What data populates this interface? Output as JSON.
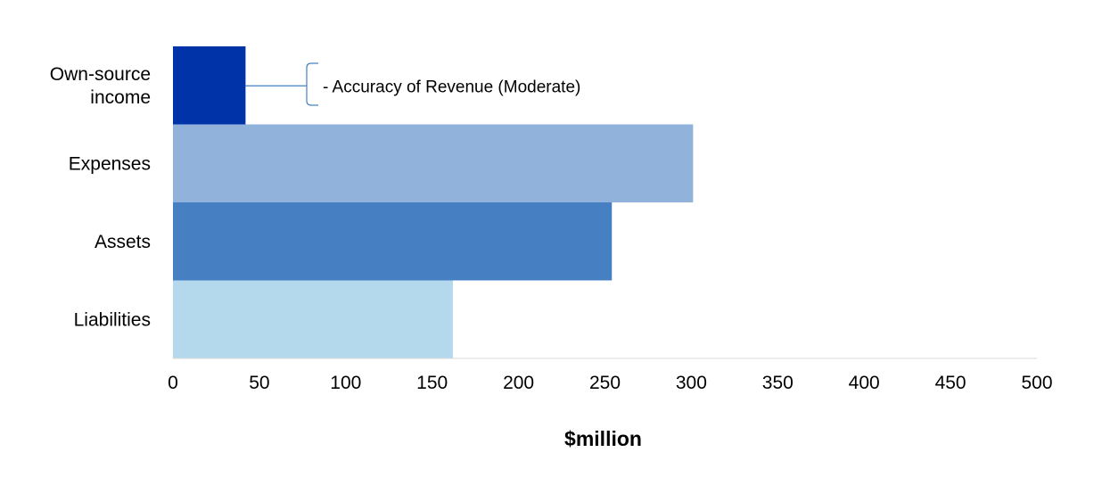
{
  "chart_data": {
    "type": "bar",
    "orientation": "horizontal",
    "categories": [
      [
        "Own-source",
        "income"
      ],
      [
        "Expenses"
      ],
      [
        "Assets"
      ],
      [
        "Liabilities"
      ]
    ],
    "values": [
      42,
      301,
      254,
      162
    ],
    "colors": [
      "#0033a8",
      "#91b3db",
      "#4680c3",
      "#b4d9ec"
    ],
    "xlabel": "$million",
    "ylabel": "",
    "xlim": [
      0,
      500
    ],
    "xticks": [
      "0",
      "50",
      "100",
      "150",
      "200",
      "250",
      "300",
      "350",
      "400",
      "450",
      "500"
    ],
    "grid": false,
    "legend": "none",
    "annotations": [
      {
        "category_index": 0,
        "text": "- Accuracy of Revenue (Moderate)",
        "style": "bracket"
      }
    ]
  }
}
